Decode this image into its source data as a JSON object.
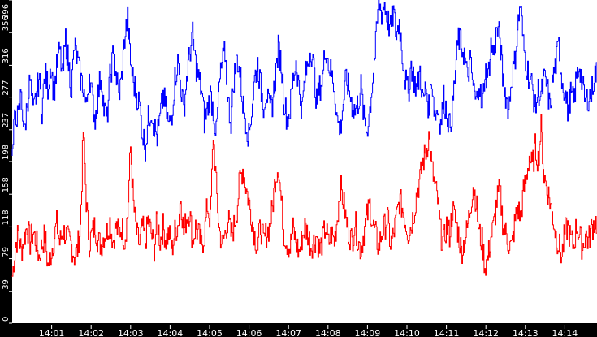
{
  "chart_data": {
    "type": "line",
    "title": "",
    "xlabel": "",
    "ylabel": "",
    "ylim": [
      0,
      396
    ],
    "xlim": [
      "14:00:00",
      "14:15:00"
    ],
    "grid": false,
    "legend": null,
    "background": "#ffffff",
    "frame_color": "#000000",
    "y_ticks": [
      0,
      39,
      79,
      118,
      158,
      198,
      237,
      277,
      316,
      356,
      396
    ],
    "x_ticks": [
      "14:01",
      "14:02",
      "14:03",
      "14:04",
      "14:05",
      "14:06",
      "14:07",
      "14:08",
      "14:09",
      "14:10",
      "14:11",
      "14:12",
      "14:13",
      "14:14"
    ],
    "sample_interval_seconds": 5,
    "series": [
      {
        "name": "blue",
        "color": "#0000ff",
        "values": [
          205,
          262,
          248,
          285,
          230,
          270,
          298,
          255,
          278,
          300,
          262,
          305,
          290,
          318,
          282,
          312,
          335,
          300,
          348,
          318,
          288,
          340,
          322,
          300,
          290,
          262,
          308,
          275,
          250,
          280,
          305,
          262,
          248,
          300,
          325,
          308,
          278,
          300,
          350,
          372,
          320,
          295,
          282,
          268,
          234,
          216,
          250,
          262,
          240,
          228,
          250,
          280,
          262,
          240,
          258,
          300,
          320,
          290,
          262,
          300,
          330,
          352,
          318,
          300,
          286,
          248,
          262,
          280,
          262,
          230,
          290,
          318,
          332,
          270,
          248,
          300,
          325,
          308,
          270,
          250,
          228,
          262,
          300,
          318,
          290,
          268,
          285,
          258,
          270,
          300,
          336,
          318,
          272,
          250,
          262,
          298,
          322,
          290,
          260,
          300,
          318,
          338,
          312,
          270,
          288,
          300,
          340,
          318,
          305,
          290,
          248,
          238,
          270,
          300,
          285,
          268,
          260,
          270,
          290,
          250,
          236,
          262,
          300,
          340,
          395,
          380,
          392,
          372,
          360,
          382,
          352,
          370,
          330,
          300,
          280,
          318,
          298,
          286,
          310,
          270,
          290,
          262,
          300,
          255,
          262,
          245,
          276,
          260,
          240,
          262,
          310,
          350,
          340,
          330,
          300,
          320,
          290,
          268,
          300,
          258,
          310,
          300,
          340,
          330,
          360,
          350,
          300,
          280,
          262,
          300,
          318,
          360,
          392,
          340,
          318,
          300,
          290,
          262,
          285,
          278,
          298,
          290,
          262,
          300,
          318,
          340,
          300,
          285,
          262,
          280,
          270,
          300,
          318,
          290,
          270,
          278,
          280,
          305
        ]
      },
      {
        "name": "red",
        "color": "#ff0000",
        "values": [
          58,
          95,
          110,
          88,
          105,
          120,
          98,
          112,
          100,
          82,
          96,
          108,
          70,
          85,
          102,
          122,
          98,
          112,
          110,
          100,
          95,
          82,
          90,
          118,
          235,
          150,
          98,
          110,
          120,
          100,
          96,
          108,
          112,
          125,
          100,
          118,
          110,
          118,
          102,
          132,
          215,
          145,
          110,
          96,
          118,
          100,
          126,
          110,
          92,
          128,
          100,
          118,
          102,
          110,
          90,
          112,
          120,
          155,
          110,
          130,
          138,
          100,
          118,
          108,
          96,
          108,
          145,
          125,
          232,
          168,
          115,
          96,
          110,
          128,
          108,
          118,
          140,
          176,
          190,
          168,
          150,
          130,
          108,
          92,
          120,
          98,
          110,
          118,
          140,
          178,
          195,
          150,
          110,
          98,
          92,
          115,
          100,
          86,
          104,
          118,
          110,
          95,
          100,
          108,
          88,
          102,
          118,
          96,
          110,
          100,
          130,
          168,
          150,
          125,
          110,
          100,
          125,
          100,
          90,
          112,
          130,
          145,
          120,
          108,
          92,
          110,
          118,
          130,
          96,
          108,
          128,
          150,
          142,
          125,
          110,
          120,
          138,
          162,
          176,
          198,
          210,
          230,
          190,
          168,
          150,
          110,
          98,
          120,
          108,
          140,
          125,
          110,
          88,
          100,
          115,
          142,
          170,
          150,
          110,
          100,
          70,
          80,
          105,
          120,
          150,
          162,
          125,
          110,
          98,
          92,
          120,
          142,
          130,
          160,
          178,
          205,
          190,
          215,
          200,
          240,
          180,
          165,
          150,
          130,
          108,
          96,
          82,
          110,
          118,
          102,
          95,
          120,
          108,
          92,
          110,
          100,
          115,
          124
        ]
      }
    ]
  },
  "axes": {
    "y_labels": [
      "0",
      "39",
      "79",
      "118",
      "158",
      "198",
      "237",
      "277",
      "316",
      "356",
      "396"
    ],
    "x_labels": [
      "14:01",
      "14:02",
      "14:03",
      "14:04",
      "14:05",
      "14:06",
      "14:07",
      "14:08",
      "14:09",
      "14:10",
      "14:11",
      "14:12",
      "14:13",
      "14:14"
    ]
  }
}
